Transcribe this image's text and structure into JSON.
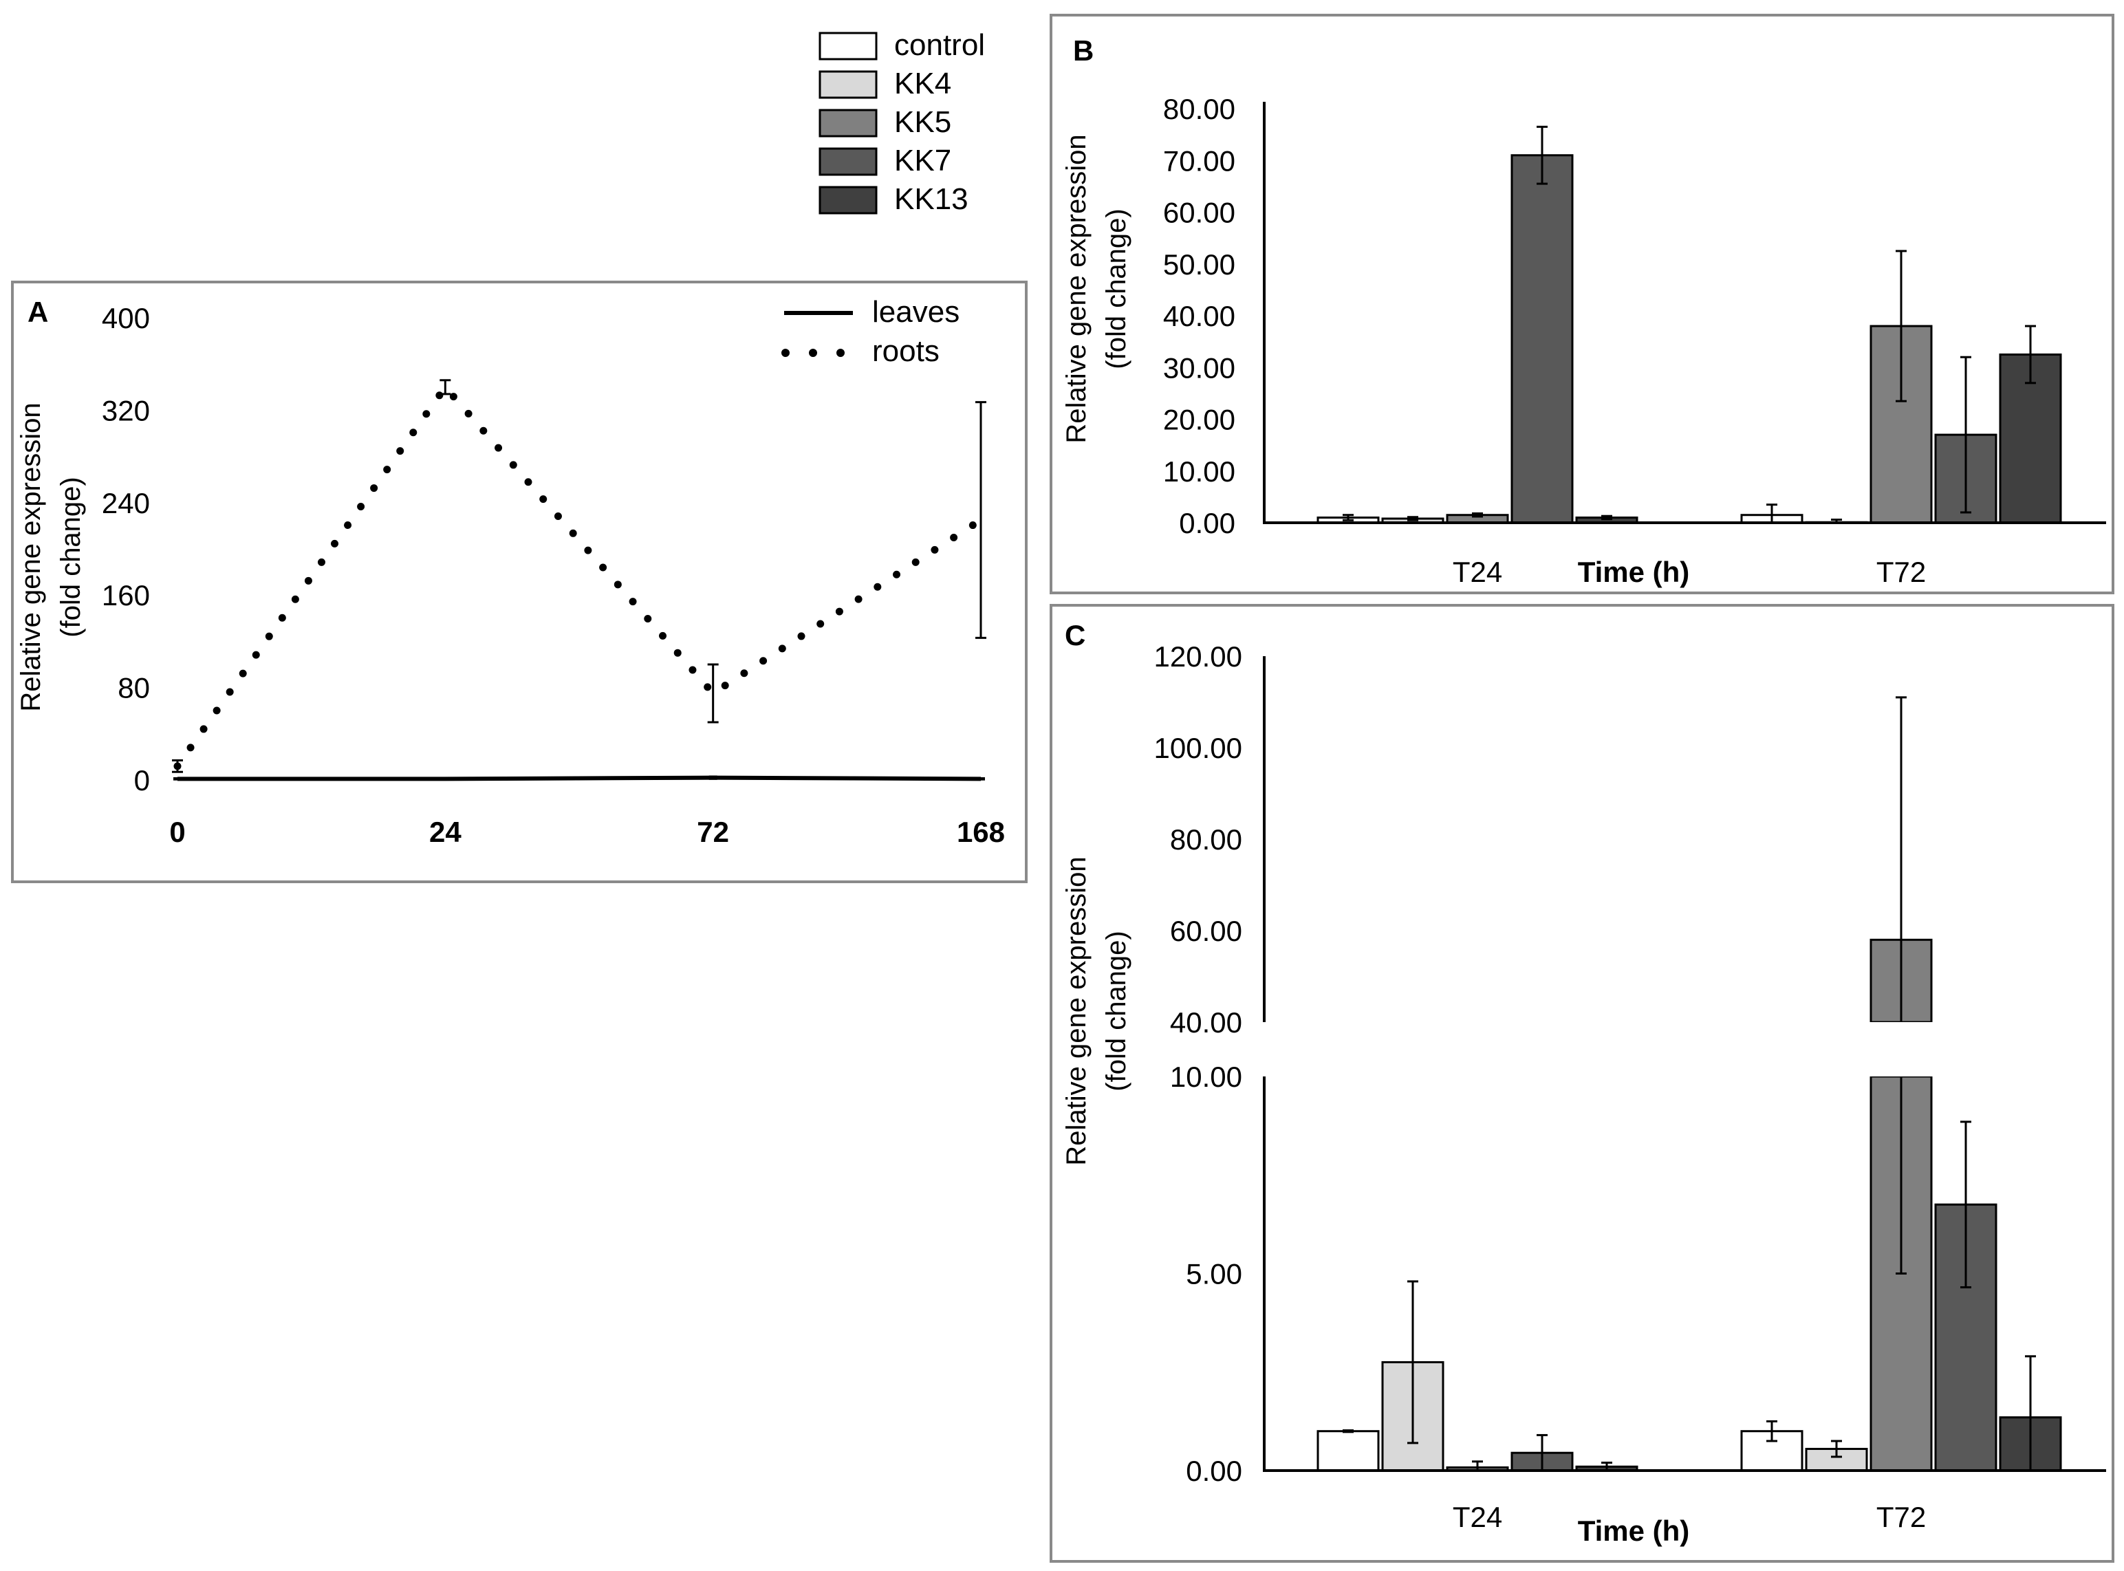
{
  "colors": {
    "control": "#ffffff",
    "KK4": "#d9d9d9",
    "KK5": "#808080",
    "KK7": "#595959",
    "KK13": "#404040"
  },
  "legend": {
    "items": [
      "control",
      "KK4",
      "KK5",
      "KK7",
      "KK13"
    ]
  },
  "chart_data": [
    {
      "panel": "A",
      "type": "line",
      "title": "",
      "x": [
        "0",
        "24",
        "72",
        "168"
      ],
      "xlabel": "",
      "ylabel": [
        "Relative gene expression",
        "(fold change)"
      ],
      "yticks": [
        0,
        80,
        160,
        240,
        320,
        400
      ],
      "ylim": [
        0,
        400
      ],
      "legend": [
        "leaves",
        "roots"
      ],
      "series": [
        {
          "name": "leaves",
          "style": "solid",
          "values": [
            1,
            1,
            2,
            1
          ],
          "errors": [
            0.5,
            0.5,
            1,
            0.5
          ]
        },
        {
          "name": "roots",
          "style": "dotted",
          "values": [
            12,
            340,
            75,
            225
          ],
          "errors": [
            5,
            6,
            25,
            102
          ]
        }
      ]
    },
    {
      "panel": "B",
      "type": "bar",
      "title": "",
      "categories": [
        "T24",
        "T72"
      ],
      "xlabel": "Time (h)",
      "ylabel": [
        "Relative gene expression",
        "(fold change)"
      ],
      "yticks": [
        "0.00",
        "10.00",
        "20.00",
        "30.00",
        "40.00",
        "50.00",
        "60.00",
        "70.00",
        "80.00"
      ],
      "ylim": [
        0,
        80
      ],
      "series": [
        {
          "name": "control",
          "values": [
            1.0,
            1.5
          ],
          "errors": [
            0.5,
            2.0
          ]
        },
        {
          "name": "KK4",
          "values": [
            0.8,
            0.1
          ],
          "errors": [
            0.3,
            0.5
          ]
        },
        {
          "name": "KK5",
          "values": [
            1.5,
            38.0
          ],
          "errors": [
            0.3,
            14.5
          ]
        },
        {
          "name": "KK7",
          "values": [
            71.0,
            17.0
          ],
          "errors": [
            5.5,
            15.0
          ]
        },
        {
          "name": "KK13",
          "values": [
            1.0,
            32.5
          ],
          "errors": [
            0.3,
            5.5
          ]
        }
      ]
    },
    {
      "panel": "C",
      "type": "bar",
      "title": "",
      "categories": [
        "T24",
        "T72"
      ],
      "xlabel": "Time (h)",
      "ylabel": [
        "Relative gene expression",
        "(fold change)"
      ],
      "axis_break": true,
      "yticks_lower": [
        "0.00",
        "5.00",
        "10.00"
      ],
      "yticks_upper": [
        "40.00",
        "60.00",
        "80.00",
        "100.00",
        "120.00"
      ],
      "ylim_lower": [
        0,
        10
      ],
      "ylim_upper": [
        40,
        120
      ],
      "series": [
        {
          "name": "control",
          "values": [
            1.0,
            1.0
          ],
          "errors": [
            0.02,
            0.25
          ]
        },
        {
          "name": "KK4",
          "values": [
            2.75,
            0.55
          ],
          "errors": [
            2.05,
            0.2
          ]
        },
        {
          "name": "KK5",
          "values": [
            0.08,
            58.0
          ],
          "errors": [
            0.15,
            53.0
          ]
        },
        {
          "name": "KK7",
          "values": [
            0.45,
            6.75
          ],
          "errors": [
            0.45,
            2.1
          ]
        },
        {
          "name": "KK13",
          "values": [
            0.1,
            1.35
          ],
          "errors": [
            0.1,
            1.55
          ]
        }
      ]
    }
  ]
}
